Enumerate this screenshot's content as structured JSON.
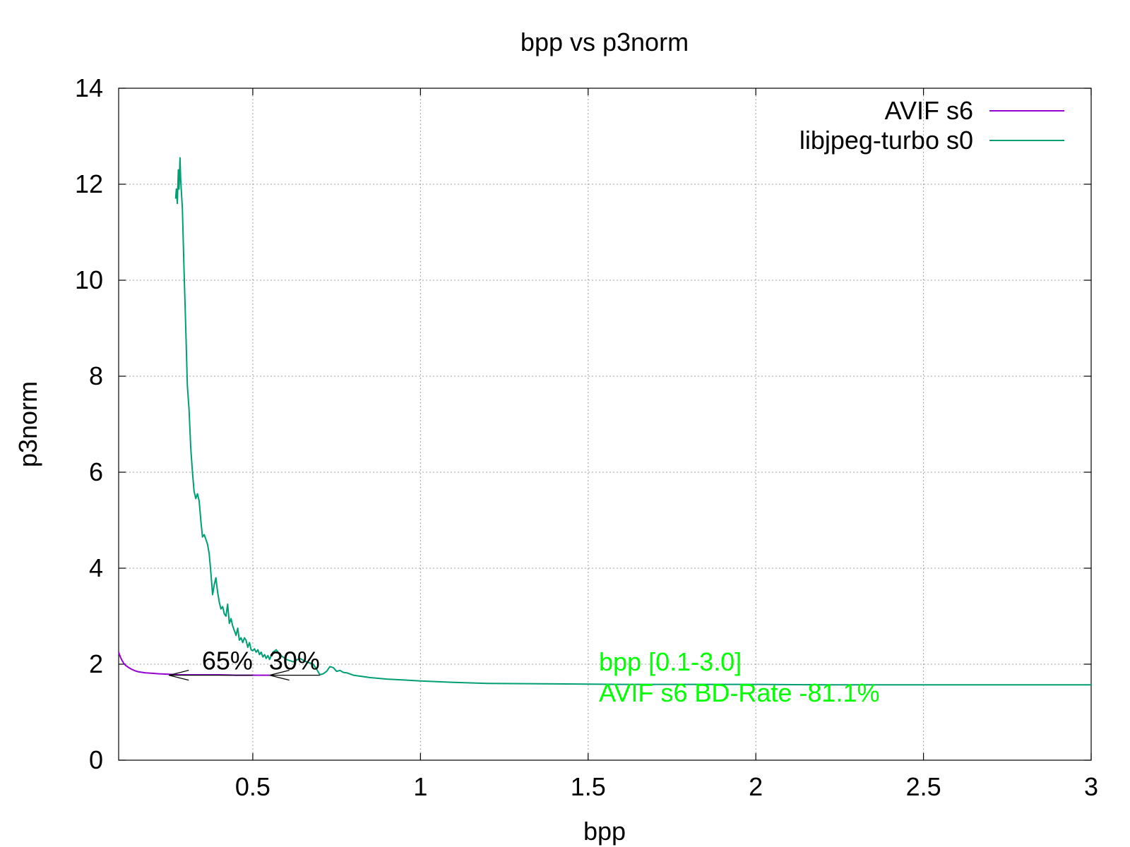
{
  "chart_data": {
    "type": "line",
    "title": "bpp vs p3norm",
    "xlabel": "bpp",
    "ylabel": "p3norm",
    "xlim": [
      0.1,
      3.0
    ],
    "ylim": [
      0,
      14
    ],
    "x_ticks": [
      0.5,
      1,
      1.5,
      2,
      2.5,
      3
    ],
    "y_ticks": [
      0,
      2,
      4,
      6,
      8,
      10,
      12,
      14
    ],
    "grid": true,
    "legend_position": "top-right",
    "series": [
      {
        "name": "AVIF s6",
        "color": "#9400d3",
        "x": [
          0.1,
          0.105,
          0.11,
          0.115,
          0.12,
          0.13,
          0.14,
          0.15,
          0.16,
          0.18,
          0.2,
          0.22,
          0.25,
          0.28,
          0.3,
          0.35,
          0.4,
          0.45,
          0.5,
          0.52,
          0.55
        ],
        "y": [
          2.25,
          2.15,
          2.08,
          2.02,
          1.98,
          1.93,
          1.89,
          1.86,
          1.84,
          1.82,
          1.81,
          1.8,
          1.79,
          1.78,
          1.78,
          1.78,
          1.78,
          1.77,
          1.77,
          1.77,
          1.77
        ]
      },
      {
        "name": "libjpeg-turbo s0",
        "color": "#009e73",
        "x": [
          0.27,
          0.272,
          0.275,
          0.278,
          0.28,
          0.283,
          0.285,
          0.29,
          0.295,
          0.3,
          0.305,
          0.31,
          0.315,
          0.32,
          0.325,
          0.33,
          0.335,
          0.34,
          0.345,
          0.35,
          0.355,
          0.36,
          0.365,
          0.37,
          0.375,
          0.38,
          0.385,
          0.39,
          0.395,
          0.4,
          0.405,
          0.41,
          0.415,
          0.42,
          0.425,
          0.43,
          0.435,
          0.44,
          0.445,
          0.45,
          0.455,
          0.46,
          0.465,
          0.47,
          0.475,
          0.48,
          0.485,
          0.49,
          0.495,
          0.5,
          0.505,
          0.51,
          0.515,
          0.52,
          0.525,
          0.53,
          0.535,
          0.54,
          0.545,
          0.55,
          0.56,
          0.57,
          0.58,
          0.59,
          0.6,
          0.62,
          0.64,
          0.66,
          0.68,
          0.69,
          0.7,
          0.71,
          0.72,
          0.73,
          0.74,
          0.75,
          0.76,
          0.77,
          0.78,
          0.8,
          0.85,
          0.9,
          0.95,
          1.0,
          1.1,
          1.2,
          1.4,
          1.6,
          1.8,
          2.0,
          2.2,
          2.5,
          2.8,
          3.0
        ],
        "y": [
          11.7,
          11.9,
          11.6,
          12.3,
          11.9,
          12.55,
          12.1,
          11.5,
          10.2,
          9.0,
          7.8,
          7.3,
          6.5,
          6.0,
          5.6,
          5.45,
          5.55,
          5.4,
          5.0,
          4.65,
          4.7,
          4.6,
          4.5,
          4.3,
          3.9,
          3.45,
          3.65,
          3.8,
          3.5,
          3.3,
          3.15,
          3.2,
          3.05,
          3.0,
          3.25,
          2.85,
          2.95,
          2.8,
          2.7,
          2.6,
          2.75,
          2.5,
          2.55,
          2.45,
          2.55,
          2.5,
          2.35,
          2.45,
          2.3,
          2.28,
          2.32,
          2.25,
          2.3,
          2.2,
          2.25,
          2.15,
          2.2,
          2.12,
          2.18,
          2.1,
          2.25,
          2.3,
          2.2,
          2.15,
          2.1,
          2.05,
          2.12,
          2.05,
          2.0,
          1.9,
          1.78,
          1.8,
          1.85,
          1.95,
          1.93,
          1.85,
          1.87,
          1.83,
          1.82,
          1.77,
          1.72,
          1.69,
          1.67,
          1.65,
          1.62,
          1.6,
          1.59,
          1.58,
          1.58,
          1.58,
          1.57,
          1.57,
          1.57,
          1.57
        ]
      }
    ],
    "annotations": [
      {
        "text": "65%",
        "x": 0.25,
        "y": 1.77,
        "arrow_from_x": 0.5,
        "color": "#000000"
      },
      {
        "text": "30%",
        "x": 0.55,
        "y": 1.77,
        "arrow_from_x": 0.7,
        "color": "#000000"
      }
    ],
    "summary_text": {
      "lines": [
        "bpp [0.1-3.0]",
        "AVIF s6 BD-Rate -81.1%"
      ],
      "color": "#00ff00"
    }
  }
}
